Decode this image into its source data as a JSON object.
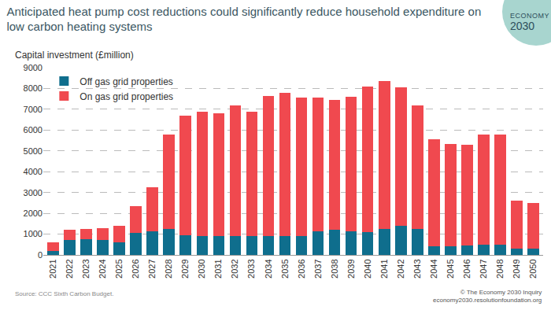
{
  "chart_data": {
    "type": "bar",
    "stacked": true,
    "title": "Anticipated heat pump cost reductions could significantly reduce household expenditure on\nlow carbon heating systems",
    "ylabel": "Capital investment (£million)",
    "source": "Source: CCC Sixth Carbon Budget.",
    "credit": "© The Economy 2030 Inquiry\neconomy2030.resolutionfoundation.org",
    "logo": "ECONOMY\n2030",
    "categories": [
      "2021",
      "2022",
      "2023",
      "2024",
      "2025",
      "2026",
      "2027",
      "2028",
      "2029",
      "2030",
      "2031",
      "2032",
      "2033",
      "2034",
      "2035",
      "2036",
      "2037",
      "2038",
      "2039",
      "2040",
      "2041",
      "2042",
      "2043",
      "2044",
      "2045",
      "2046",
      "2047",
      "2048",
      "2049",
      "2050"
    ],
    "series": [
      {
        "name": "Off gas grid properties",
        "color": "#0f6e8d",
        "values": [
          200,
          700,
          750,
          700,
          600,
          1050,
          1150,
          1250,
          950,
          900,
          900,
          900,
          900,
          900,
          900,
          900,
          1150,
          1200,
          1150,
          1100,
          1250,
          1400,
          1250,
          400,
          400,
          450,
          500,
          500,
          300,
          300
        ]
      },
      {
        "name": "On gas grid properties",
        "color": "#f0494f",
        "values": [
          400,
          500,
          500,
          600,
          800,
          1300,
          2100,
          4550,
          5750,
          6000,
          5900,
          6300,
          6000,
          6750,
          6900,
          6650,
          6400,
          6250,
          6450,
          7000,
          7100,
          6650,
          5950,
          5150,
          4950,
          4850,
          5300,
          5300,
          2300,
          2200
        ]
      }
    ],
    "ylim": [
      0,
      9000
    ],
    "yticks": [
      0,
      1000,
      2000,
      3000,
      4000,
      5000,
      6000,
      7000,
      8000,
      9000
    ],
    "grid": true,
    "legend": "top left"
  }
}
